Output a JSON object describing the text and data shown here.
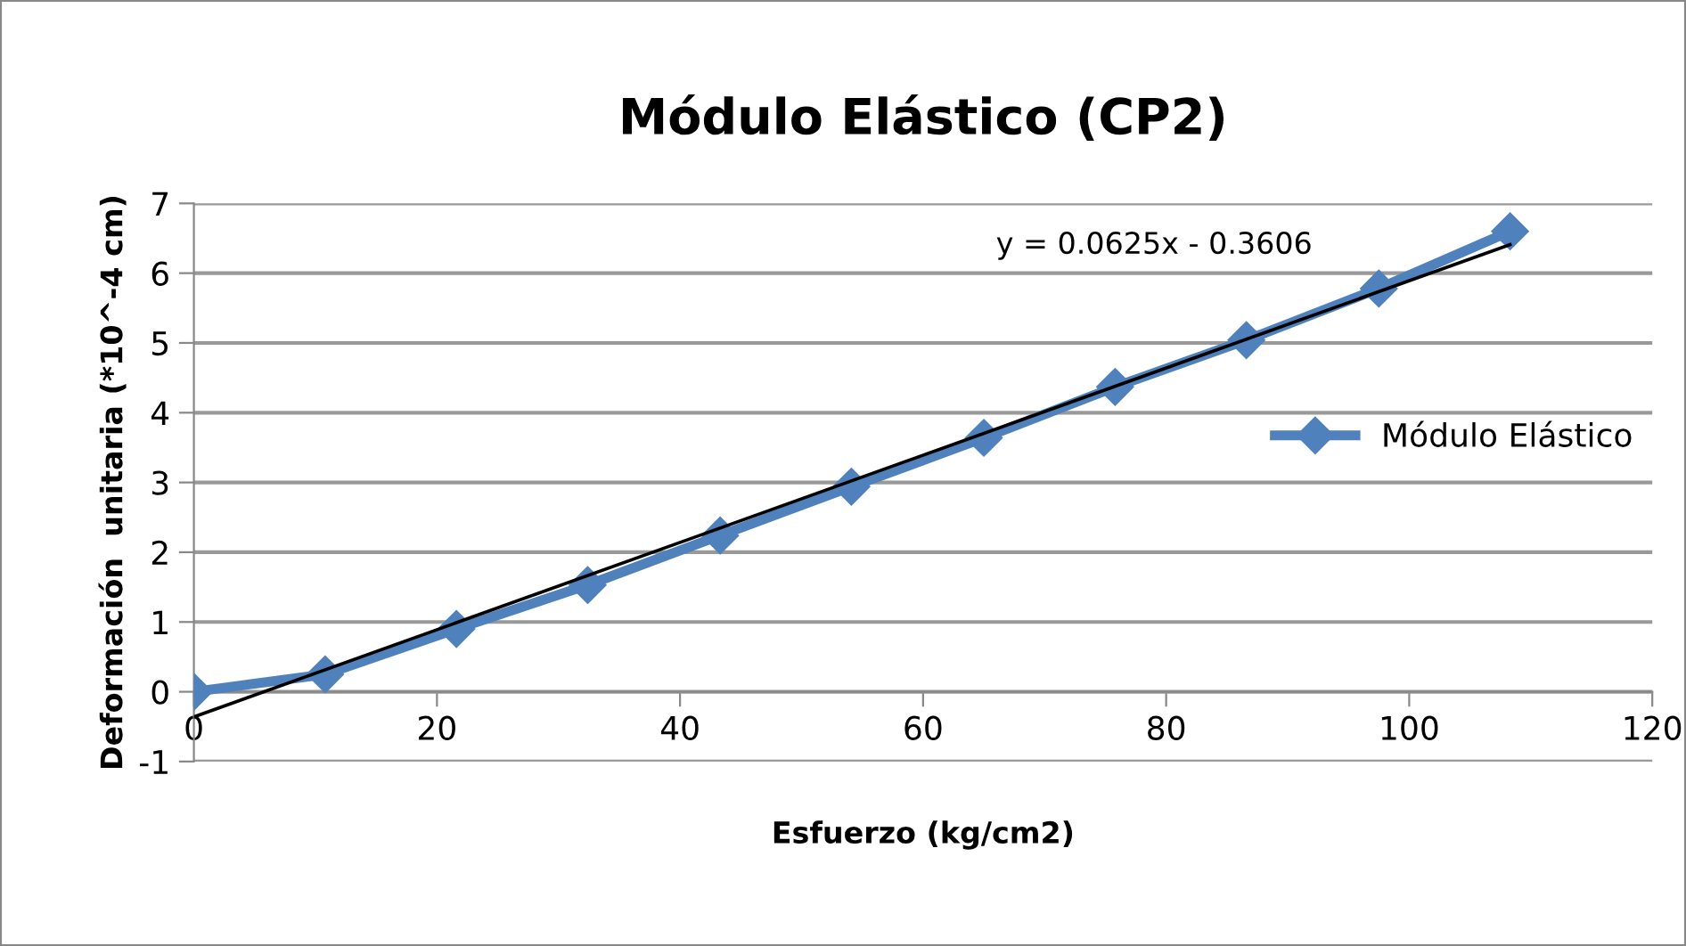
{
  "chart_data": {
    "type": "line",
    "title": "Módulo Elástico (CP2)",
    "xlabel": "Esfuerzo (kg/cm2)",
    "ylabel": "Deformación  unitaria (*10^-4 cm)",
    "x": [
      0,
      10.8,
      21.6,
      32.4,
      43.3,
      54.1,
      65,
      75.8,
      86.6,
      97.5,
      108.3
    ],
    "series": [
      {
        "name": "Módulo Elástico",
        "color": "#4f81bd",
        "values": [
          0,
          0.25,
          0.9,
          1.53,
          2.24,
          2.94,
          3.64,
          4.37,
          5.04,
          5.78,
          6.6
        ],
        "marker": "diamond"
      },
      {
        "type": "line",
        "color": "#000000",
        "x": [
          0,
          108.3
        ],
        "values": [
          -0.36,
          6.41
        ],
        "marker": "none"
      }
    ],
    "annotations": [
      "y = 0.0625x - 0.3606"
    ],
    "xlim": [
      0,
      120
    ],
    "xticks": [
      0,
      20,
      40,
      60,
      80,
      100,
      120
    ],
    "ylim": [
      -1,
      7
    ],
    "yticks": [
      -1,
      0,
      1,
      2,
      3,
      4,
      5,
      6,
      7
    ],
    "grid": "y",
    "legend": "right"
  }
}
